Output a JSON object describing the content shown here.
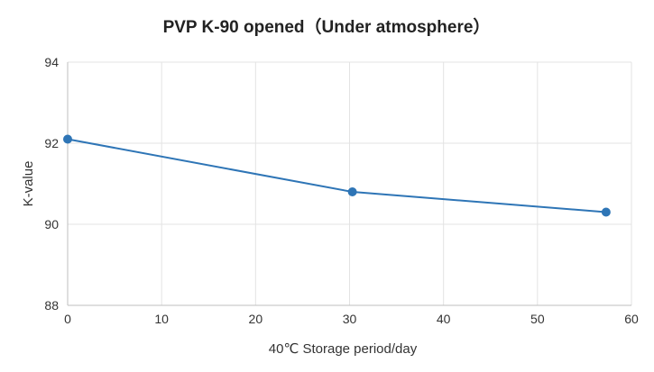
{
  "chart_data": {
    "type": "line",
    "title": "PVP K-90 opened（Under atmosphere）",
    "xlabel": "40℃ Storage period/day",
    "ylabel": "K-value",
    "xlim": [
      0,
      60
    ],
    "ylim": [
      88,
      94
    ],
    "xticks": [
      0,
      10,
      20,
      30,
      40,
      50,
      60
    ],
    "yticks": [
      88,
      90,
      92,
      94
    ],
    "grid": true,
    "series": [
      {
        "color": "#2e75b6",
        "points": [
          {
            "x": 0,
            "y": 92.1
          },
          {
            "x": 30.3,
            "y": 90.8
          },
          {
            "x": 57.3,
            "y": 90.3
          }
        ]
      }
    ]
  }
}
